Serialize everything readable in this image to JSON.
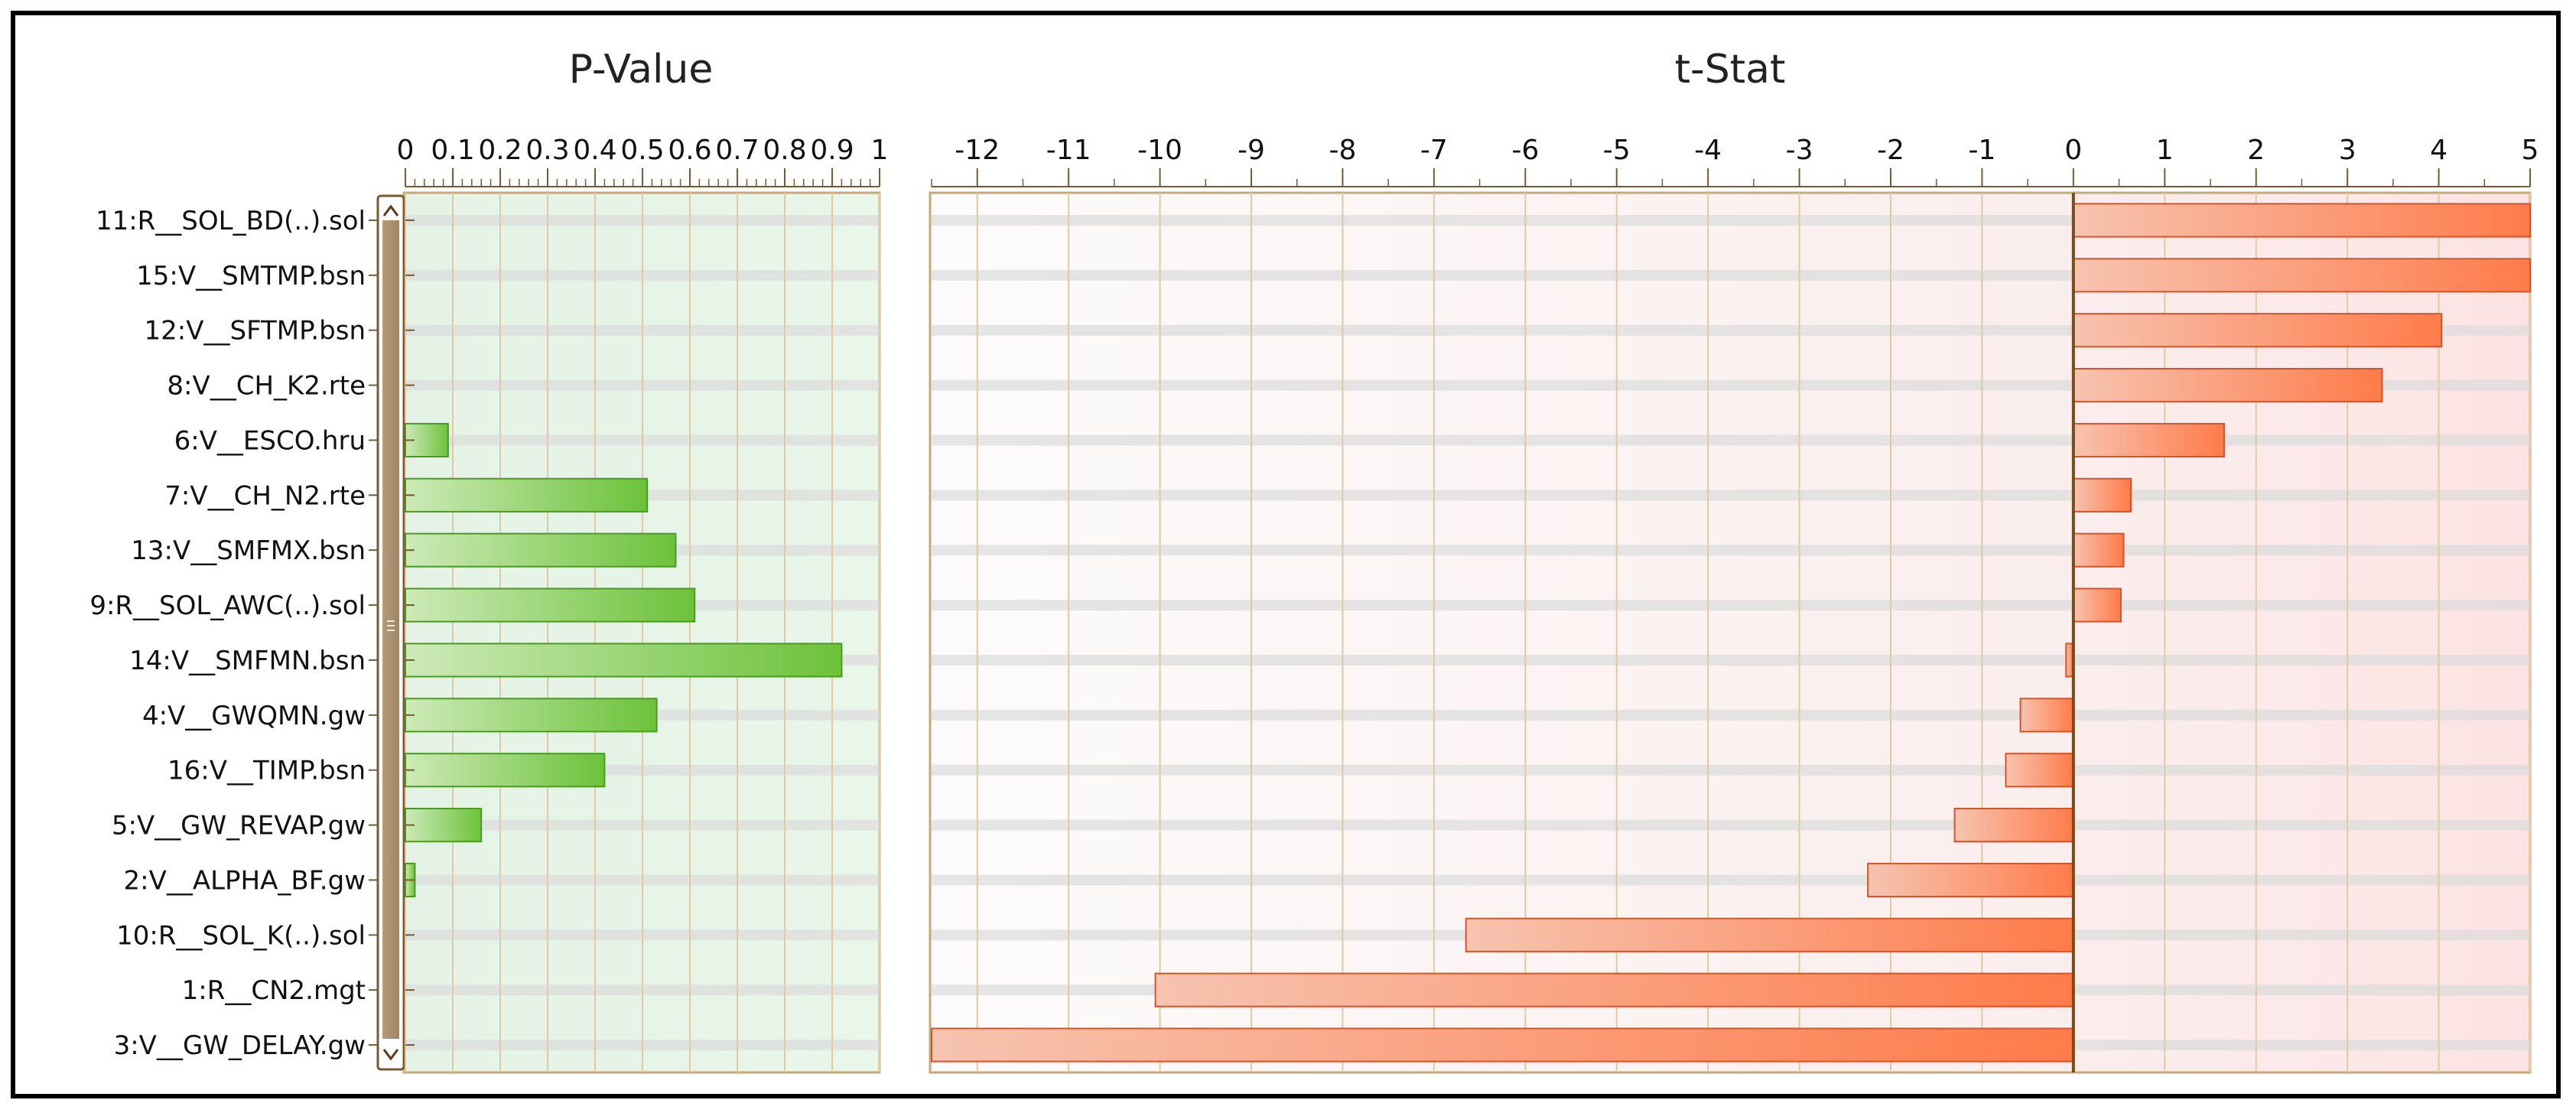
{
  "chart_data": [
    {
      "type": "bar",
      "orientation": "horizontal",
      "title": "P-Value",
      "categories": [
        "11:R__SOL_BD(..).sol",
        "15:V__SMTMP.bsn",
        "12:V__SFTMP.bsn",
        "8:V__CH_K2.rte",
        "6:V__ESCO.hru",
        "7:V__CH_N2.rte",
        "13:V__SMFMX.bsn",
        "9:R__SOL_AWC(..).sol",
        "14:V__SMFMN.bsn",
        "4:V__GWQMN.gw",
        "16:V__TIMP.bsn",
        "5:V__GW_REVAP.gw",
        "2:V__ALPHA_BF.gw",
        "10:R__SOL_K(..).sol",
        "1:R__CN2.mgt",
        "3:V__GW_DELAY.gw"
      ],
      "values": [
        0.0,
        0.0,
        0.0,
        0.0,
        0.09,
        0.51,
        0.57,
        0.61,
        0.92,
        0.53,
        0.42,
        0.16,
        0.02,
        0.0,
        0.0,
        0.0
      ],
      "xlim": [
        0,
        1
      ],
      "ticks": [
        "0",
        "0.1",
        "0.2",
        "0.3",
        "0.4",
        "0.5",
        "0.6",
        "0.7",
        "0.8",
        "0.9",
        "1"
      ],
      "tick_values": [
        0,
        0.1,
        0.2,
        0.3,
        0.4,
        0.5,
        0.6,
        0.7,
        0.8,
        0.9,
        1
      ],
      "grid": true,
      "colors": {
        "bar": "#6cc23a",
        "bar_light": "#d8f0c4",
        "bar_stroke": "#4a9a22",
        "background": "#e8f5e9",
        "grid": "#e2c9a0"
      }
    },
    {
      "type": "bar",
      "orientation": "horizontal",
      "title": "t-Stat",
      "categories": [
        "11:R__SOL_BD(..).sol",
        "15:V__SMTMP.bsn",
        "12:V__SFTMP.bsn",
        "8:V__CH_K2.rte",
        "6:V__ESCO.hru",
        "7:V__CH_N2.rte",
        "13:V__SMFMX.bsn",
        "9:R__SOL_AWC(..).sol",
        "14:V__SMFMN.bsn",
        "4:V__GWQMN.gw",
        "16:V__TIMP.bsn",
        "5:V__GW_REVAP.gw",
        "2:V__ALPHA_BF.gw",
        "10:R__SOL_K(..).sol",
        "1:R__CN2.mgt",
        "3:V__GW_DELAY.gw"
      ],
      "values": [
        5.0,
        5.0,
        4.03,
        3.38,
        1.65,
        0.63,
        0.55,
        0.52,
        -0.08,
        -0.58,
        -0.74,
        -1.3,
        -2.25,
        -6.65,
        -10.05,
        -12.5
      ],
      "xlim": [
        -12.5,
        5
      ],
      "ticks": [
        "-12",
        "-11",
        "-10",
        "-9",
        "-8",
        "-7",
        "-6",
        "-5",
        "-4",
        "-3",
        "-2",
        "-1",
        "0",
        "1",
        "2",
        "3",
        "4",
        "5"
      ],
      "tick_values": [
        -12,
        -11,
        -10,
        -9,
        -8,
        -7,
        -6,
        -5,
        -4,
        -3,
        -2,
        -1,
        0,
        1,
        2,
        3,
        4,
        5
      ],
      "grid": true,
      "colors": {
        "bar": "#ff7b4a",
        "bar_light": "#f8c8b4",
        "bar_stroke": "#d4542a",
        "background_neg": "#fdf3f3",
        "background_pos": "#fde6e6",
        "grid": "#e2c9a0",
        "zero_line": "#7a4a18"
      }
    }
  ]
}
